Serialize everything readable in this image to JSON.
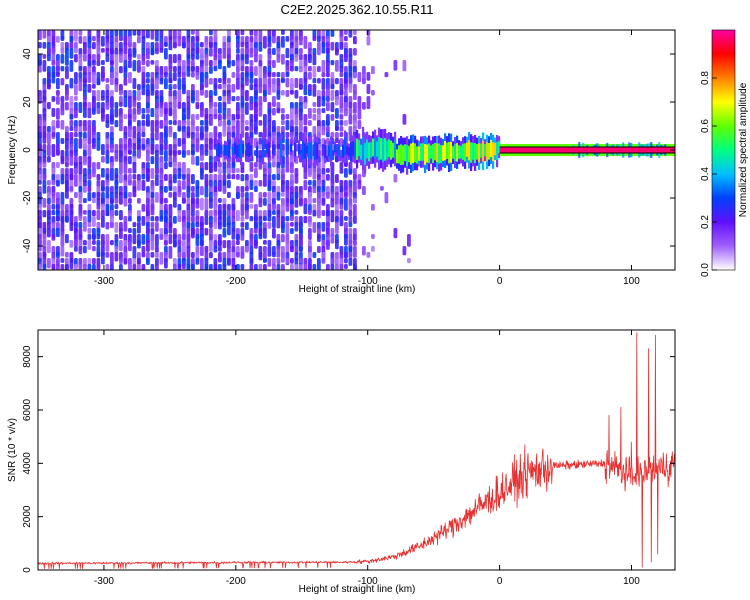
{
  "title": "C2E2.2025.362.10.55.R11",
  "chart_data": [
    {
      "type": "heatmap",
      "name": "spectrogram",
      "xlabel": "Height of straight line (km)",
      "ylabel": "Frequency (Hz)",
      "xlim": [
        -350,
        133
      ],
      "ylim": [
        -50,
        50
      ],
      "xticks": [
        -300,
        -200,
        -100,
        0,
        100
      ],
      "yticks": [
        -40,
        -20,
        0,
        20,
        40
      ],
      "colorbar": {
        "label": "Normalized spectral amplitude",
        "range": [
          0.0,
          1.0
        ],
        "ticks": [
          0.0,
          0.2,
          0.4,
          0.6,
          0.8
        ],
        "colormap": [
          "#ffffff",
          "#a060ff",
          "#6010ff",
          "#0040ff",
          "#00c0ff",
          "#00ff80",
          "#60ff00",
          "#ffff00",
          "#ff8000",
          "#ff0000",
          "#ff00a0"
        ]
      },
      "description_regions": [
        {
          "x_range": [
            -350,
            -110
          ],
          "y_range": [
            -50,
            50
          ],
          "level": "0.1-0.3",
          "kind": "broadband noise"
        },
        {
          "x_range": [
            -110,
            0
          ],
          "y_center": 0,
          "y_halfwidth": 4,
          "level": "0.3-0.7",
          "kind": "wandering carrier"
        },
        {
          "x_range": [
            0,
            133
          ],
          "y_center": 0,
          "y_halfwidth": 1.5,
          "level": "0.9-1.0",
          "kind": "strong carrier"
        }
      ]
    },
    {
      "type": "line",
      "name": "snr",
      "xlabel": "Height of straight line (km)",
      "ylabel": "SNR (10 * v/v)",
      "xlim": [
        -350,
        133
      ],
      "ylim": [
        0,
        9000
      ],
      "xticks": [
        -300,
        -200,
        -100,
        0,
        100
      ],
      "yticks": [
        0,
        2000,
        4000,
        6000,
        8000
      ],
      "color": "#e83030",
      "envelope": {
        "x": [
          -350,
          -300,
          -200,
          -120,
          -100,
          -80,
          -60,
          -40,
          -20,
          0,
          20,
          40,
          60,
          80,
          100,
          120,
          133
        ],
        "y": [
          250,
          260,
          280,
          290,
          320,
          500,
          900,
          1500,
          2200,
          2900,
          3600,
          3900,
          3950,
          4000,
          3500,
          3800,
          4000
        ]
      },
      "spikes": [
        {
          "x": 83,
          "y": 5800
        },
        {
          "x": 92,
          "y": 6100
        },
        {
          "x": 100,
          "y": 4800
        },
        {
          "x": 104,
          "y": 8900
        },
        {
          "x": 108,
          "y": 100
        },
        {
          "x": 113,
          "y": 8300
        },
        {
          "x": 115,
          "y": 300
        },
        {
          "x": 118,
          "y": 8800
        },
        {
          "x": 120,
          "y": 600
        }
      ]
    }
  ]
}
